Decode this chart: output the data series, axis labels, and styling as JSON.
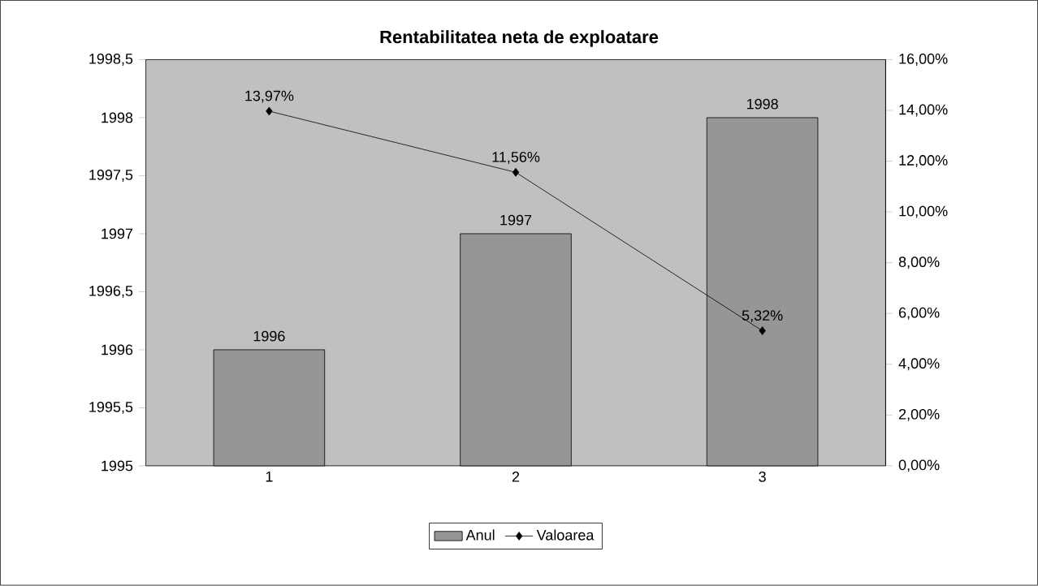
{
  "chart_data": {
    "type": "bar",
    "title": "Rentabilitatea neta de exploatare",
    "categories": [
      "1",
      "2",
      "3"
    ],
    "series": [
      {
        "name": "Anul",
        "color": "#969696",
        "values": [
          1996,
          1997,
          1998
        ]
      },
      {
        "name": "Valoarea",
        "type": "line",
        "axis": "y2",
        "color": "#000000",
        "marker": "diamond",
        "values": [
          13.97,
          11.56,
          5.32
        ],
        "value_labels": [
          "13,97%",
          "11,56%",
          "5,32%"
        ]
      }
    ],
    "data_labels": true,
    "ylim": [
      1995,
      1998.5
    ],
    "yticks": [
      1995,
      {
        "value": 1995.5,
        "label": "1995,5"
      },
      1996,
      {
        "value": 1996.5,
        "label": "1996,5"
      },
      1997,
      {
        "value": 1997.5,
        "label": "1997,5"
      },
      1998,
      {
        "value": 1998.5,
        "label": "1998,5"
      }
    ],
    "y2lim": [
      0,
      16
    ],
    "y2ticks": [
      {
        "value": 0,
        "label": "0,00%"
      },
      {
        "value": 2,
        "label": "2,00%"
      },
      {
        "value": 4,
        "label": "4,00%"
      },
      {
        "value": 6,
        "label": "6,00%"
      },
      {
        "value": 8,
        "label": "8,00%"
      },
      {
        "value": 10,
        "label": "10,00%"
      },
      {
        "value": 12,
        "label": "12,00%"
      },
      {
        "value": 14,
        "label": "14,00%"
      },
      {
        "value": 16,
        "label": "16,00%"
      }
    ],
    "grid": false,
    "legend": "bottom"
  }
}
